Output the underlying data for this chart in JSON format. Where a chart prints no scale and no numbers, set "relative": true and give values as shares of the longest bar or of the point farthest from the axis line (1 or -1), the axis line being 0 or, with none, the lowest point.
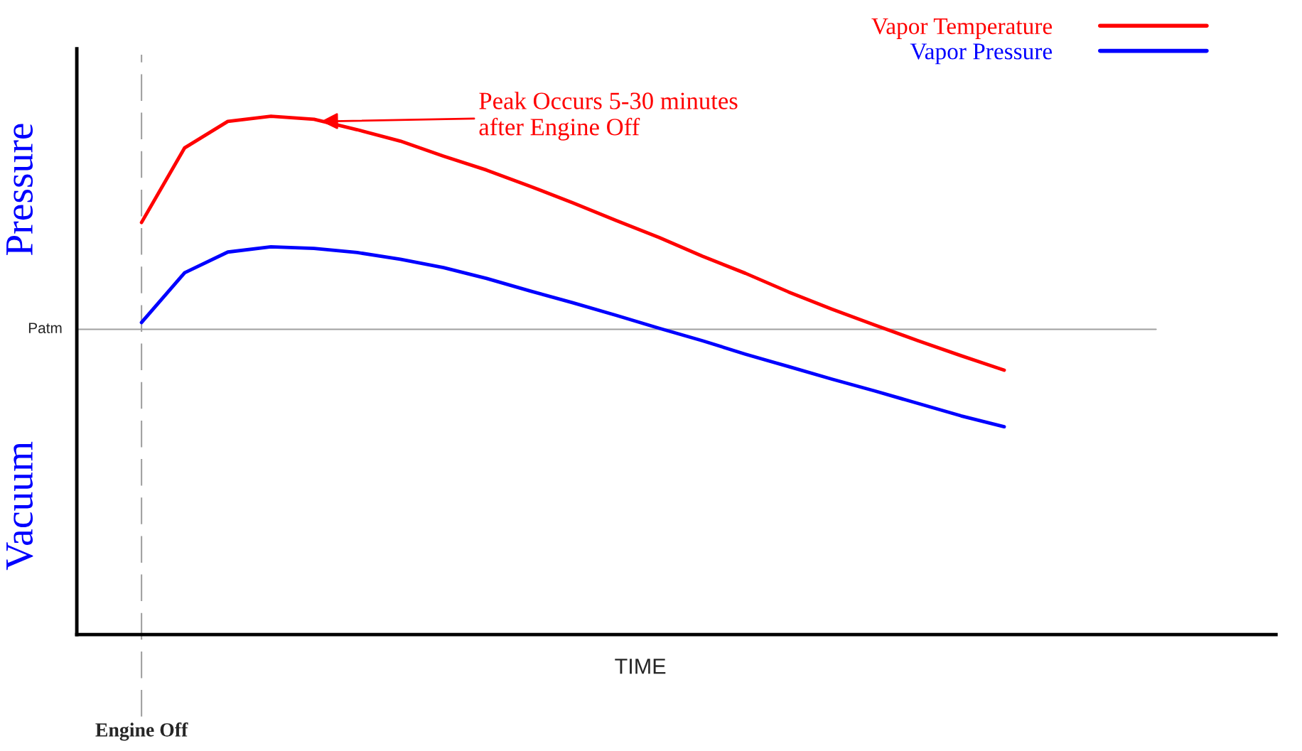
{
  "chart_data": {
    "type": "line",
    "relative": true,
    "xlabel": "TIME",
    "categories": [
      null,
      null,
      null,
      null,
      null,
      null,
      null,
      null,
      null,
      null,
      null,
      null,
      null,
      null,
      null,
      null,
      null,
      null,
      null,
      null,
      null
    ],
    "series": [
      {
        "name": "Vapor Temperature",
        "color": "#ff0000",
        "values": [
          0.795,
          0.939,
          0.99,
          1.0,
          0.994,
          0.974,
          0.952,
          0.923,
          0.896,
          0.865,
          0.833,
          0.799,
          0.766,
          0.73,
          0.697,
          0.661,
          0.628,
          0.597,
          0.567,
          0.538,
          0.51
        ]
      },
      {
        "name": "Vapor Pressure",
        "color": "#0000ff",
        "values": [
          0.602,
          0.698,
          0.738,
          0.748,
          0.745,
          0.737,
          0.724,
          0.708,
          0.687,
          0.663,
          0.64,
          0.616,
          0.591,
          0.567,
          0.541,
          0.517,
          0.493,
          0.47,
          0.446,
          0.422,
          0.401
        ]
      }
    ],
    "ref_lines": [
      {
        "axis": "y",
        "value": 0.589,
        "label": "Patm",
        "color": "#a0a0a0",
        "line_style": "solid"
      }
    ],
    "annotations": [
      "Pressure",
      "Vacuum",
      "Peak Occurs 5-30 minutes\nafter Engine Off",
      "Engine Off"
    ],
    "legend": "top right",
    "grid": false,
    "marker": "none",
    "line_style": "solid"
  }
}
